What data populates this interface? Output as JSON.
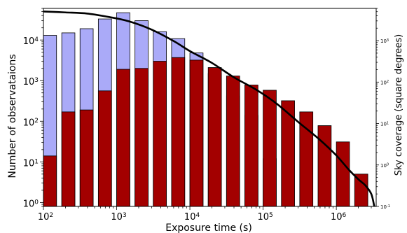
{
  "chart_data": {
    "type": "bar",
    "x_scale": "log",
    "y_scale": "log",
    "xlabel": "Exposure time (s)",
    "ylabel": "Number of observataions",
    "y2label": "Sky coverage (square degrees)",
    "xlim": [
      100,
      3500000
    ],
    "ylim": [
      0.8,
      60000
    ],
    "y2lim": [
      0.1,
      6000
    ],
    "grid": false,
    "legend": "none",
    "colors": {
      "series_a": "#aaaaf8",
      "series_b": "#a30000",
      "curve": "#000000"
    },
    "x_tick_labels": [
      {
        "base": "10",
        "exp": "2",
        "value": 100
      },
      {
        "base": "10",
        "exp": "3",
        "value": 1000
      },
      {
        "base": "10",
        "exp": "4",
        "value": 10000
      },
      {
        "base": "10",
        "exp": "5",
        "value": 100000
      },
      {
        "base": "10",
        "exp": "6",
        "value": 1000000
      }
    ],
    "y_tick_labels": [
      {
        "base": "10",
        "exp": "0",
        "value": 1
      },
      {
        "base": "10",
        "exp": "1",
        "value": 10
      },
      {
        "base": "10",
        "exp": "2",
        "value": 100
      },
      {
        "base": "10",
        "exp": "3",
        "value": 1000
      },
      {
        "base": "10",
        "exp": "4",
        "value": 10000
      }
    ],
    "y2_tick_labels": [
      {
        "base": "10",
        "exp": "-1",
        "value": 0.1
      },
      {
        "base": "10",
        "exp": "0",
        "value": 1
      },
      {
        "base": "10",
        "exp": "1",
        "value": 10
      },
      {
        "base": "10",
        "exp": "2",
        "value": 100
      },
      {
        "base": "10",
        "exp": "3",
        "value": 1000
      }
    ],
    "series": [
      {
        "bars": [
          {
            "x0": 100,
            "x1": 151,
            "y": 13000
          },
          {
            "x0": 178,
            "x1": 269,
            "y": 15000
          },
          {
            "x0": 316,
            "x1": 478,
            "y": 19000
          },
          {
            "x0": 562,
            "x1": 851,
            "y": 33000
          },
          {
            "x0": 1000,
            "x1": 1514,
            "y": 47000
          },
          {
            "x0": 1778,
            "x1": 2692,
            "y": 30000
          },
          {
            "x0": 3162,
            "x1": 4786,
            "y": 16000
          },
          {
            "x0": 5623,
            "x1": 8511,
            "y": 10800
          },
          {
            "x0": 10000,
            "x1": 15136,
            "y": 4800
          },
          {
            "x0": 17783,
            "x1": 26915,
            "y": 1500
          },
          {
            "x0": 31623,
            "x1": 47863,
            "y": 420
          },
          {
            "x0": 56234,
            "x1": 85114,
            "y": 140
          },
          {
            "x0": 100000,
            "x1": 151356,
            "y": 12
          }
        ]
      },
      {
        "bars": [
          {
            "x0": 100,
            "x1": 151,
            "y": 14
          },
          {
            "x0": 178,
            "x1": 269,
            "y": 170
          },
          {
            "x0": 316,
            "x1": 478,
            "y": 190
          },
          {
            "x0": 562,
            "x1": 851,
            "y": 560
          },
          {
            "x0": 1000,
            "x1": 1514,
            "y": 1900
          },
          {
            "x0": 1778,
            "x1": 2692,
            "y": 2000
          },
          {
            "x0": 3162,
            "x1": 4786,
            "y": 3000
          },
          {
            "x0": 5623,
            "x1": 8511,
            "y": 3700
          },
          {
            "x0": 10000,
            "x1": 15136,
            "y": 3200
          },
          {
            "x0": 17783,
            "x1": 26915,
            "y": 2100
          },
          {
            "x0": 31623,
            "x1": 47863,
            "y": 1300
          },
          {
            "x0": 56234,
            "x1": 85114,
            "y": 780
          },
          {
            "x0": 100000,
            "x1": 151356,
            "y": 580
          },
          {
            "x0": 177828,
            "x1": 269153,
            "y": 320
          },
          {
            "x0": 316228,
            "x1": 478630,
            "y": 170
          },
          {
            "x0": 562341,
            "x1": 851138,
            "y": 78
          },
          {
            "x0": 1000000,
            "x1": 1513561,
            "y": 31
          },
          {
            "x0": 1778279,
            "x1": 2691535,
            "y": 5
          }
        ]
      }
    ],
    "curve": {
      "axis": "right",
      "points": [
        [
          100,
          5050
        ],
        [
          200,
          4800
        ],
        [
          400,
          4500
        ],
        [
          800,
          3700
        ],
        [
          1500,
          2900
        ],
        [
          3000,
          1850
        ],
        [
          6000,
          980
        ],
        [
          10000,
          560
        ],
        [
          20000,
          290
        ],
        [
          40000,
          130
        ],
        [
          80000,
          66
        ],
        [
          150000,
          31
        ],
        [
          300000,
          11
        ],
        [
          600000,
          4.0
        ],
        [
          1000000,
          1.7
        ],
        [
          1500000,
          0.75
        ],
        [
          2000000,
          0.45
        ],
        [
          2500000,
          0.32
        ],
        [
          3000000,
          0.2
        ],
        [
          3300000,
          0.1
        ]
      ]
    }
  }
}
